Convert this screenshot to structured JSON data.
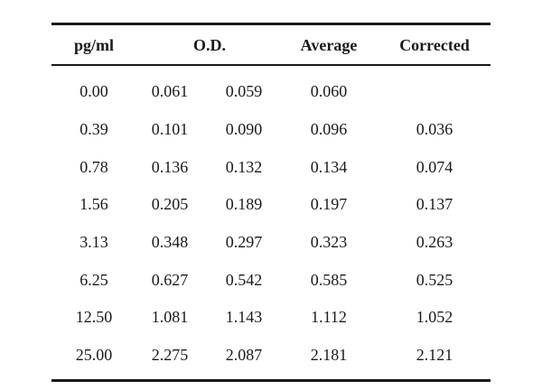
{
  "table": {
    "headers": {
      "pgml": "pg/ml",
      "od": "O.D.",
      "average": "Average",
      "corrected": "Corrected"
    },
    "rows": [
      {
        "pgml": "0.00",
        "od1": "0.061",
        "od2": "0.059",
        "average": "0.060",
        "corrected": ""
      },
      {
        "pgml": "0.39",
        "od1": "0.101",
        "od2": "0.090",
        "average": "0.096",
        "corrected": "0.036"
      },
      {
        "pgml": "0.78",
        "od1": "0.136",
        "od2": "0.132",
        "average": "0.134",
        "corrected": "0.074"
      },
      {
        "pgml": "1.56",
        "od1": "0.205",
        "od2": "0.189",
        "average": "0.197",
        "corrected": "0.137"
      },
      {
        "pgml": "3.13",
        "od1": "0.348",
        "od2": "0.297",
        "average": "0.323",
        "corrected": "0.263"
      },
      {
        "pgml": "6.25",
        "od1": "0.627",
        "od2": "0.542",
        "average": "0.585",
        "corrected": "0.525"
      },
      {
        "pgml": "12.50",
        "od1": "1.081",
        "od2": "1.143",
        "average": "1.112",
        "corrected": "1.052"
      },
      {
        "pgml": "25.00",
        "od1": "2.275",
        "od2": "2.087",
        "average": "2.181",
        "corrected": "2.121"
      }
    ]
  }
}
